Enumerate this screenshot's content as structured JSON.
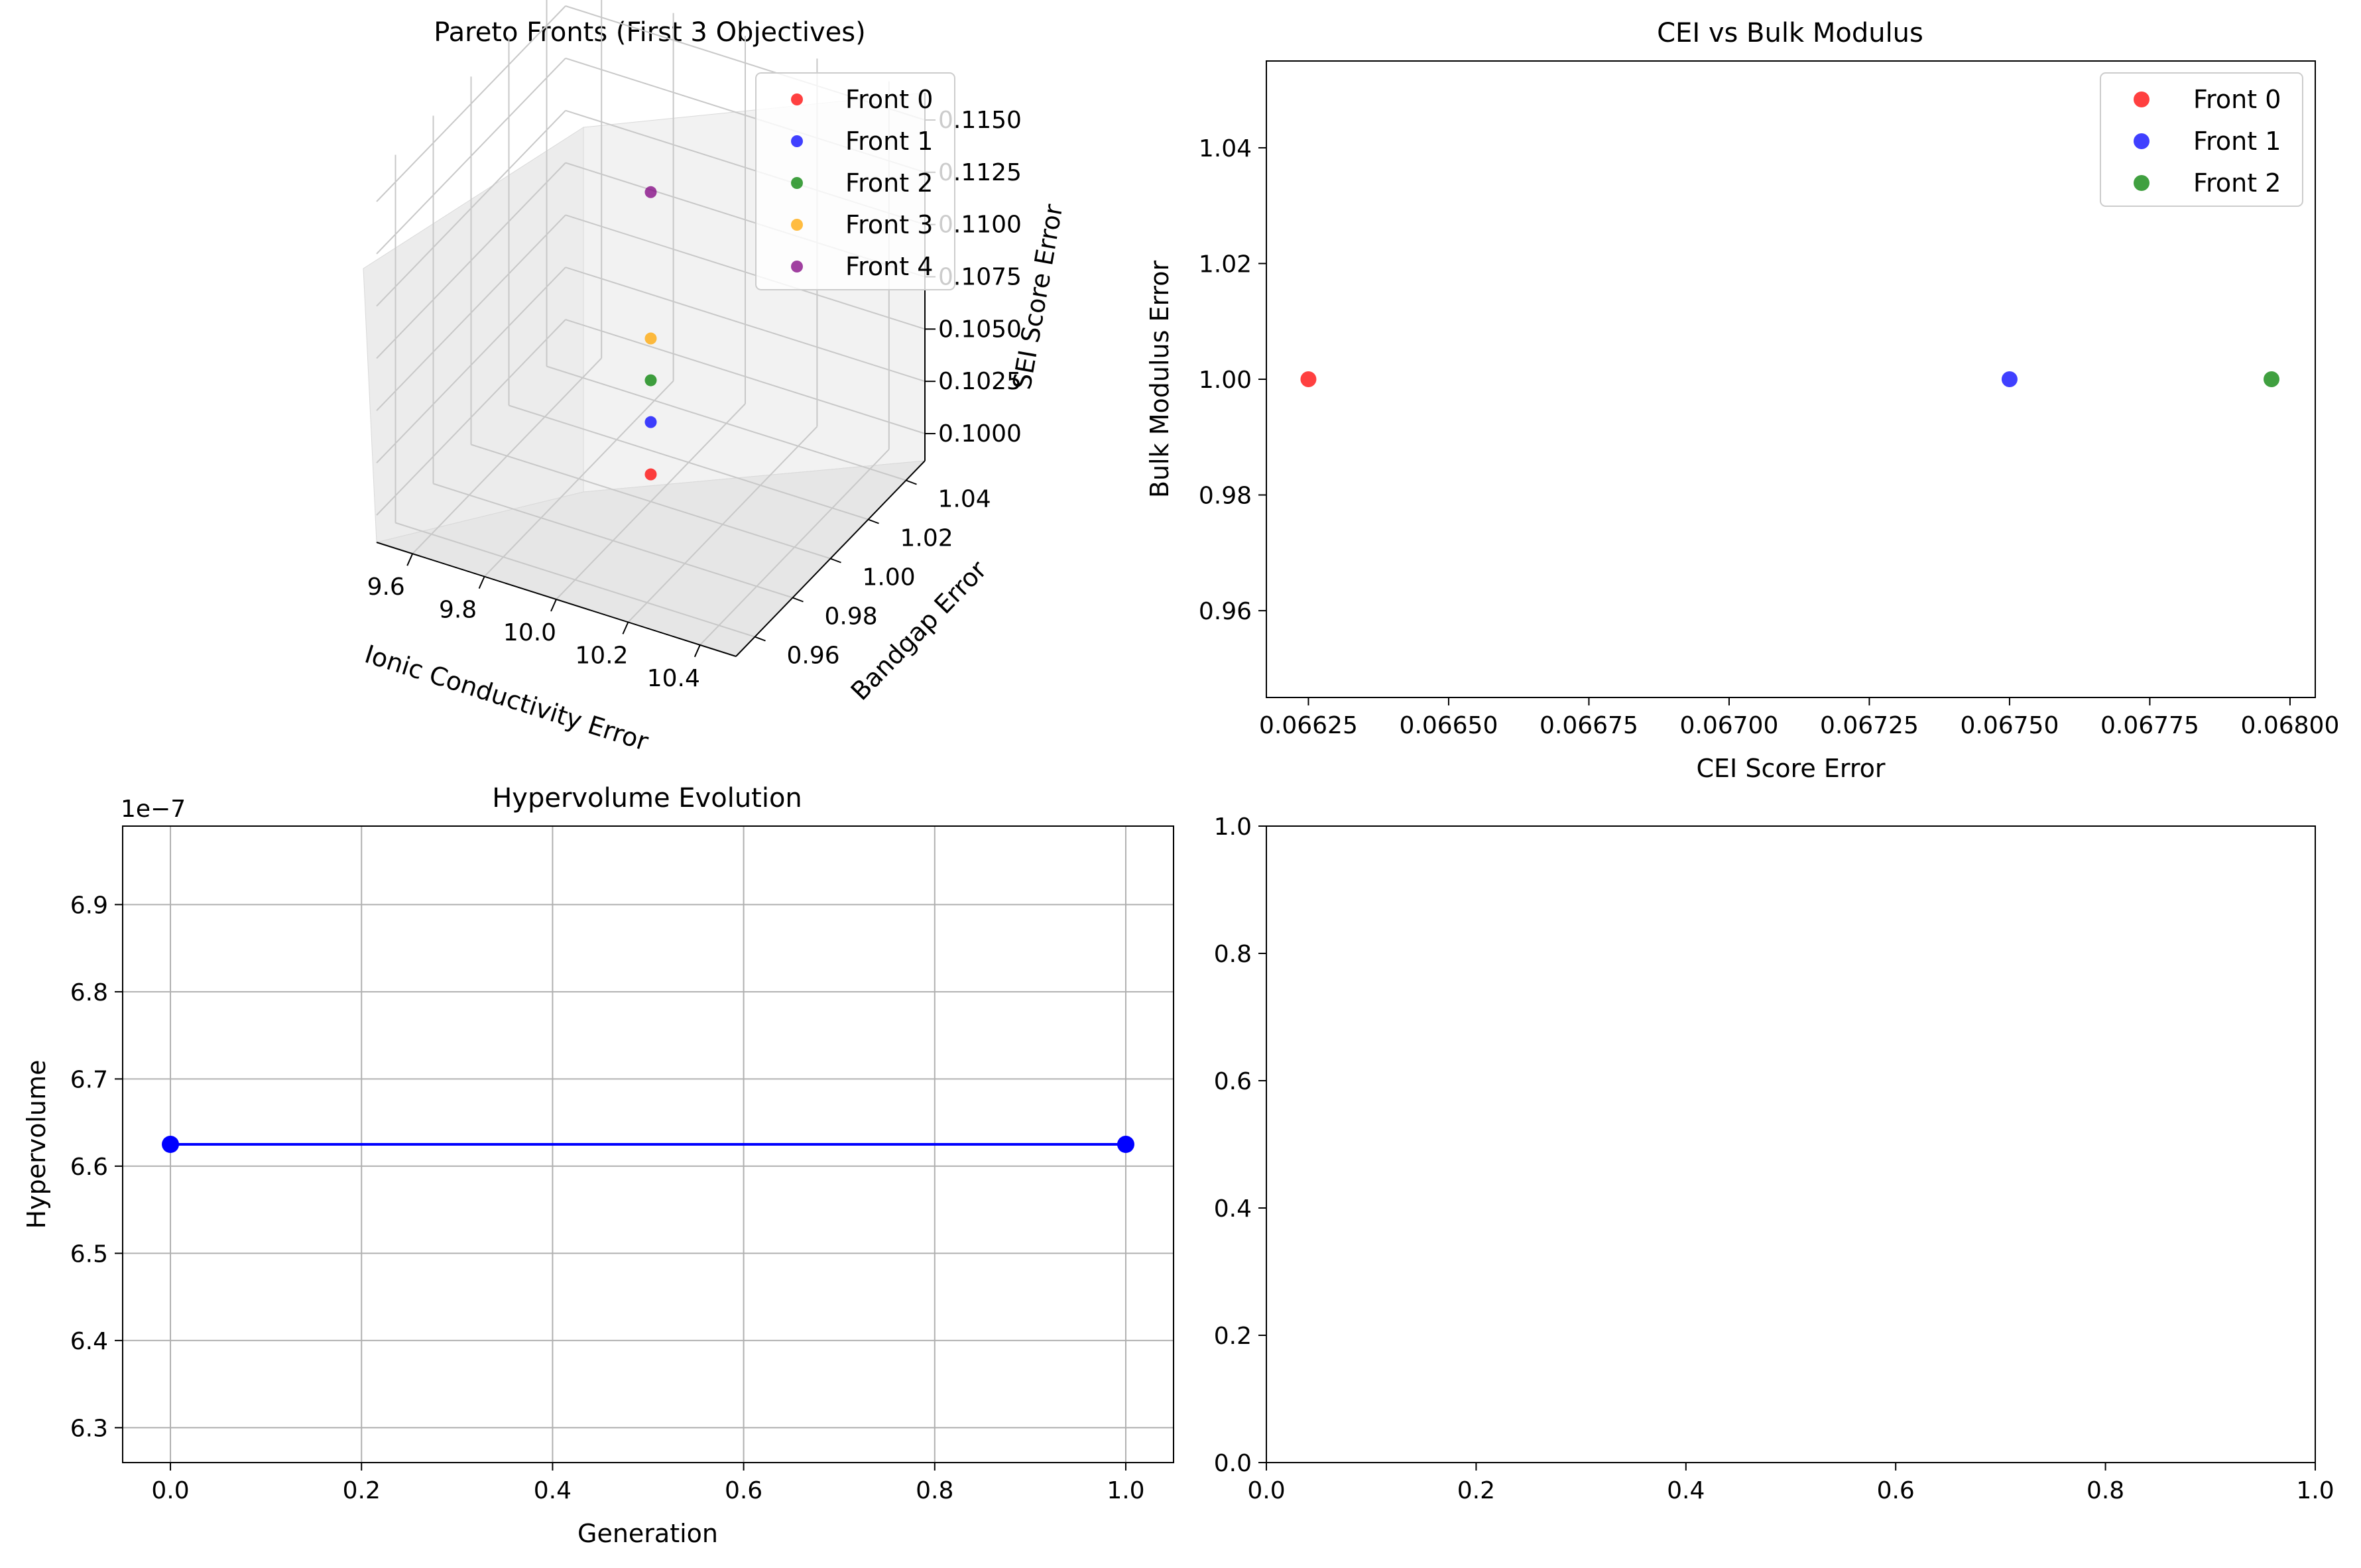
{
  "colors": {
    "front0": "#ff0000",
    "front1": "#0000ff",
    "front2": "#008000",
    "front3": "#ffa500",
    "front4": "#800080",
    "line": "#0000ff",
    "grid": "#b0b0b0",
    "pane": "#f2f2f2"
  },
  "chart_data": [
    {
      "type": "scatter",
      "projection": "3d",
      "title": "Pareto Fronts (First 3 Objectives)",
      "xlabel": "Ionic Conductivity Error",
      "ylabel": "Bandgap Error",
      "zlabel": "SEI Score Error",
      "xticks": [
        "9.6",
        "9.8",
        "10.0",
        "10.2",
        "10.4"
      ],
      "yticks": [
        "0.96",
        "0.98",
        "1.00",
        "1.02",
        "1.04"
      ],
      "zticks": [
        "0.1000",
        "0.1025",
        "0.1050",
        "0.1075",
        "0.1100",
        "0.1125",
        "0.1150"
      ],
      "legend_position": "top-right",
      "grid": true,
      "series": [
        {
          "name": "Front 0",
          "color_key": "front0",
          "points": [
            {
              "x": 10.0,
              "y": 1.0,
              "z": 0.1
            }
          ]
        },
        {
          "name": "Front 1",
          "color_key": "front1",
          "points": [
            {
              "x": 10.0,
              "y": 1.0,
              "z": 0.1025
            }
          ]
        },
        {
          "name": "Front 2",
          "color_key": "front2",
          "points": [
            {
              "x": 10.0,
              "y": 1.0,
              "z": 0.1045
            }
          ]
        },
        {
          "name": "Front 3",
          "color_key": "front3",
          "points": [
            {
              "x": 10.0,
              "y": 1.0,
              "z": 0.1065
            }
          ]
        },
        {
          "name": "Front 4",
          "color_key": "front4",
          "points": [
            {
              "x": 10.0,
              "y": 1.0,
              "z": 0.1135
            }
          ]
        }
      ]
    },
    {
      "type": "scatter",
      "title": "CEI vs Bulk Modulus",
      "xlabel": "CEI Score Error",
      "ylabel": "Bulk Modulus Error",
      "xlim": [
        0.066175,
        0.068045
      ],
      "ylim": [
        0.945,
        1.055
      ],
      "xticks": [
        "0.06625",
        "0.06650",
        "0.06675",
        "0.06700",
        "0.06725",
        "0.06750",
        "0.06775",
        "0.06800"
      ],
      "yticks": [
        "0.96",
        "0.98",
        "1.00",
        "1.02",
        "1.04"
      ],
      "legend_position": "top-right",
      "grid": false,
      "series": [
        {
          "name": "Front 0",
          "color_key": "front0",
          "points": [
            {
              "x": 0.06625,
              "y": 1.0
            }
          ]
        },
        {
          "name": "Front 1",
          "color_key": "front1",
          "points": [
            {
              "x": 0.0675,
              "y": 1.0
            }
          ]
        },
        {
          "name": "Front 2",
          "color_key": "front2",
          "points": [
            {
              "x": 0.067967,
              "y": 1.0
            }
          ]
        }
      ]
    },
    {
      "type": "line",
      "title": "Hypervolume Evolution",
      "xlabel": "Generation",
      "ylabel": "Hypervolume",
      "offset_label": "1e−7",
      "xlim": [
        -0.05,
        1.05
      ],
      "ylim": [
        6.26,
        6.99
      ],
      "xticks": [
        "0.0",
        "0.2",
        "0.4",
        "0.6",
        "0.8",
        "1.0"
      ],
      "yticks": [
        "6.3",
        "6.4",
        "6.5",
        "6.6",
        "6.7",
        "6.8",
        "6.9"
      ],
      "grid": true,
      "series": [
        {
          "color_key": "line",
          "x": [
            0,
            1
          ],
          "y": [
            6.625,
            6.625
          ]
        }
      ]
    },
    {
      "type": "scatter",
      "title": "",
      "xlim": [
        0,
        1
      ],
      "ylim": [
        0,
        1
      ],
      "xticks": [
        "0.0",
        "0.2",
        "0.4",
        "0.6",
        "0.8",
        "1.0"
      ],
      "yticks": [
        "0.0",
        "0.2",
        "0.4",
        "0.6",
        "0.8",
        "1.0"
      ],
      "grid": false,
      "series": []
    }
  ]
}
